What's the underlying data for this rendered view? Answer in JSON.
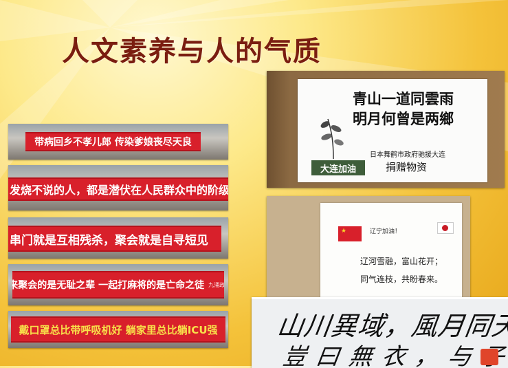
{
  "slide": {
    "title": "人文素养与人的气质"
  },
  "banners": [
    {
      "text": "带病回乡不孝儿郎  传染爹娘丧尽天良",
      "signature": ""
    },
    {
      "text": "发烧不说的人，都是潜伏在人民群众中的阶级敌",
      "signature": ""
    },
    {
      "text": "串门就是互相残杀，聚会就是自寻短见",
      "signature": ""
    },
    {
      "text": "出来聚会的是无耻之辈  一起打麻将的是亡命之徒",
      "signature": "九涌政府  宣"
    },
    {
      "text": "戴口罩总比带呼吸机好  躺家里总比躺ICU强",
      "signature": ""
    }
  ],
  "donation_sign": {
    "poem_line1": "青山一道同雲雨",
    "poem_line2": "明月何曾是两鄉",
    "donor": "日本舞鹤市政府驰援大连",
    "gift": "捐赠物资",
    "tag": "大连加油"
  },
  "liaoning_sign": {
    "cheer": "辽宁加油！",
    "line1": "辽河雪融，富山花开；",
    "line2": "同气连枝，共盼春来。"
  },
  "calligraphy": {
    "line1": "山川異域，風月同天",
    "line2": "豈曰無衣，与子同裳"
  },
  "colors": {
    "title": "#7a1d10",
    "banner_red": "#d8202b",
    "background_gold": "#f4c23a"
  }
}
